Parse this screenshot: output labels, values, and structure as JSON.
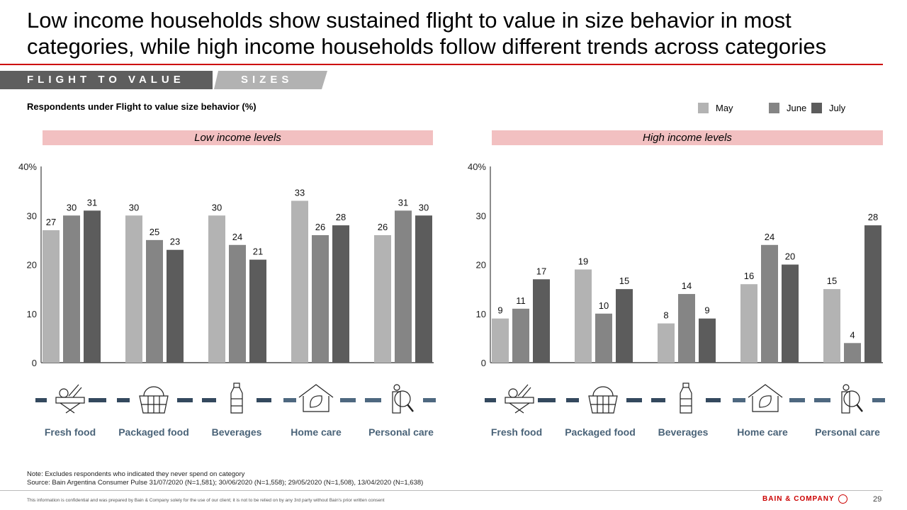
{
  "header": {
    "title": "Low income households show sustained flight to value in size behavior in most categories, while high income households follow different trends across categories",
    "tab_primary": "FLIGHT TO VALUE",
    "tab_secondary": "SIZES",
    "subtitle": "Respondents under Flight to value size behavior (%)"
  },
  "legend": [
    {
      "label": "May",
      "color": "#b3b3b3"
    },
    {
      "label": "June",
      "color": "#858585"
    },
    {
      "label": "July",
      "color": "#5c5c5c"
    }
  ],
  "categories": [
    {
      "label": "Fresh food",
      "icon": "fresh-food-icon"
    },
    {
      "label": "Packaged food",
      "icon": "basket-icon"
    },
    {
      "label": "Beverages",
      "icon": "bottle-icon"
    },
    {
      "label": "Home care",
      "icon": "home-leaf-icon"
    },
    {
      "label": "Personal care",
      "icon": "person-search-icon"
    }
  ],
  "chart_data": [
    {
      "type": "bar",
      "title": "Low income levels",
      "categories": [
        "Fresh food",
        "Packaged food",
        "Beverages",
        "Home care",
        "Personal care"
      ],
      "series": [
        {
          "name": "May",
          "values": [
            27,
            30,
            30,
            33,
            26
          ]
        },
        {
          "name": "June",
          "values": [
            30,
            25,
            24,
            26,
            31
          ]
        },
        {
          "name": "July",
          "values": [
            31,
            23,
            21,
            28,
            30
          ]
        }
      ],
      "ylim": [
        0,
        40
      ],
      "yticks": [
        "0",
        "10",
        "20",
        "30",
        "40%"
      ],
      "ylabel": "",
      "xlabel": "",
      "grid": false
    },
    {
      "type": "bar",
      "title": "High income levels",
      "categories": [
        "Fresh food",
        "Packaged food",
        "Beverages",
        "Home care",
        "Personal care"
      ],
      "series": [
        {
          "name": "May",
          "values": [
            9,
            19,
            8,
            16,
            15
          ]
        },
        {
          "name": "June",
          "values": [
            11,
            10,
            14,
            24,
            4
          ]
        },
        {
          "name": "July",
          "values": [
            17,
            15,
            9,
            20,
            28
          ]
        }
      ],
      "ylim": [
        0,
        40
      ],
      "yticks": [
        "0",
        "10",
        "20",
        "30",
        "40%"
      ],
      "ylabel": "",
      "xlabel": "",
      "grid": false
    }
  ],
  "footer": {
    "note": "Note: Excludes respondents who indicated they never spend on category",
    "source": "Source: Bain Argentina Consumer Pulse 31/07/2020 (N=1,581); 30/06/2020 (N=1,558); 29/05/2020 (N=1,508), 13/04/2020 (N=1,638)",
    "disclaimer": "This information is confidential and was prepared by Bain & Company solely for the use of our client; it is not to be relied on by any 3rd party without Bain's prior written consent",
    "brand": "BAIN & COMPANY",
    "page_number": "29"
  }
}
